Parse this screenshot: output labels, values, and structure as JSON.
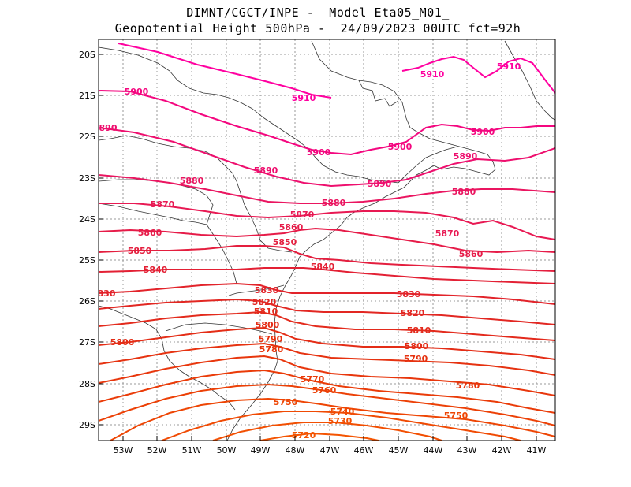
{
  "title": {
    "line1": "DIMNT/CGCT/INPE -  Model Eta05_M01_",
    "line2": "Geopotential Height 500hPa -  24/09/2023 00UTC fct=92h"
  },
  "axes": {
    "lat_labels": [
      "20S",
      "21S",
      "22S",
      "23S",
      "24S",
      "25S",
      "26S",
      "27S",
      "28S",
      "29S"
    ],
    "lon_labels": [
      "53W",
      "52W",
      "51W",
      "50W",
      "49W",
      "48W",
      "47W",
      "46W",
      "45W",
      "44W",
      "43W",
      "42W",
      "41W"
    ]
  },
  "contours": [
    {
      "value": "5910",
      "color": "#ff00a0",
      "labels": [
        "5910",
        "5910",
        "5910"
      ]
    },
    {
      "value": "5900",
      "color": "#f4067f",
      "labels": [
        "5900",
        "5900",
        "5900",
        "5900"
      ]
    },
    {
      "value": "5890",
      "color": "#ee0f6e",
      "labels": [
        "890",
        "5890",
        "5890",
        "5890"
      ]
    },
    {
      "value": "5880",
      "color": "#ea1560",
      "labels": [
        "5880",
        "5880",
        "5880"
      ]
    },
    {
      "value": "5870",
      "color": "#e81953",
      "labels": [
        "5870",
        "5870",
        "5870"
      ]
    },
    {
      "value": "5860",
      "color": "#e61b48",
      "labels": [
        "5860",
        "5860",
        "5860"
      ]
    },
    {
      "value": "5850",
      "color": "#e41e3e",
      "labels": [
        "5850",
        "5850"
      ]
    },
    {
      "value": "5840",
      "color": "#e32034",
      "labels": [
        "5840",
        "5840"
      ]
    },
    {
      "value": "5830",
      "color": "#e2232a",
      "labels": [
        "830",
        "5830",
        "5830"
      ]
    },
    {
      "value": "5820",
      "color": "#e22722",
      "labels": [
        "5820",
        "5820"
      ]
    },
    {
      "value": "5810",
      "color": "#e32a1c",
      "labels": [
        "5810",
        "5810"
      ]
    },
    {
      "value": "5800",
      "color": "#e42d16",
      "labels": [
        "5800",
        "5800",
        "5800"
      ]
    },
    {
      "value": "5790",
      "color": "#e63210",
      "labels": [
        "5790",
        "5790"
      ]
    },
    {
      "value": "5780",
      "color": "#e8360c",
      "labels": [
        "5780",
        "5780"
      ]
    },
    {
      "value": "5770",
      "color": "#ea3b08",
      "labels": [
        "5770"
      ]
    },
    {
      "value": "5760",
      "color": "#ec4006",
      "labels": [
        "5760"
      ]
    },
    {
      "value": "5750",
      "color": "#ee4504",
      "labels": [
        "5750",
        "5750"
      ]
    },
    {
      "value": "5740",
      "color": "#f04a03",
      "labels": [
        "5740"
      ]
    },
    {
      "value": "5730",
      "color": "#f24f02",
      "labels": [
        "5730"
      ]
    },
    {
      "value": "5720",
      "color": "#f45401",
      "labels": [
        "5720"
      ]
    }
  ]
}
